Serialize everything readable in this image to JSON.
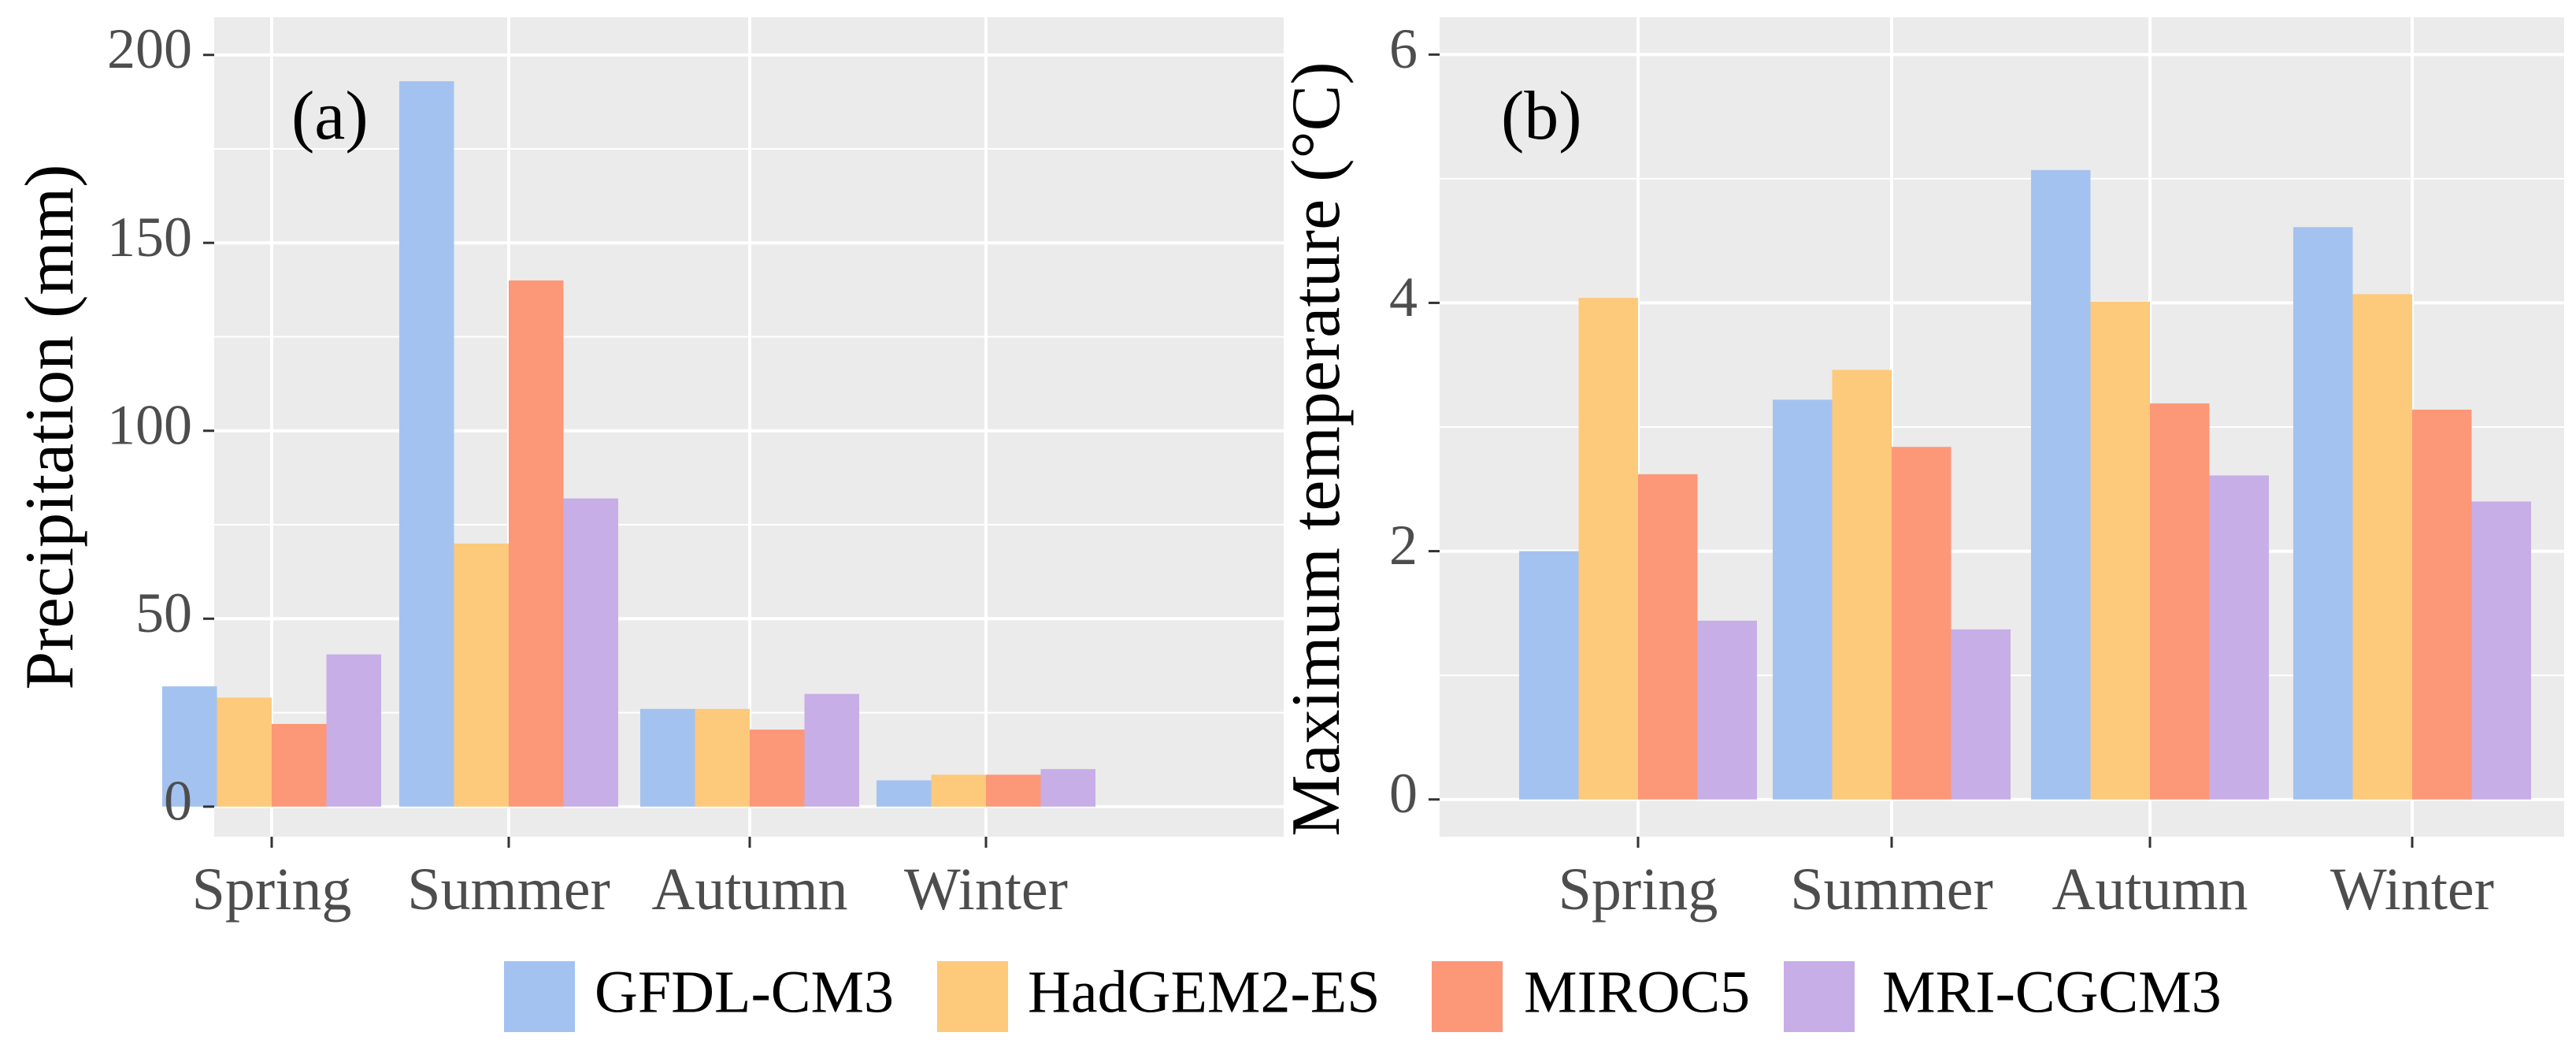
{
  "chart_data": [
    {
      "type": "bar",
      "panel_label": "(a)",
      "title": "",
      "xlabel": "",
      "ylabel": "Precipitation (mm)",
      "ylim": [
        -8,
        210
      ],
      "yticks": [
        0,
        50,
        100,
        150,
        200
      ],
      "categories": [
        "Spring",
        "Summer",
        "Autumn",
        "Winter"
      ],
      "series": [
        {
          "name": "GFDL-CM3",
          "values": [
            32,
            193,
            26,
            7
          ]
        },
        {
          "name": "HadGEM2-ES",
          "values": [
            29,
            70,
            26,
            8.5
          ]
        },
        {
          "name": "MIROC5",
          "values": [
            22,
            140,
            20.5,
            8.5
          ]
        },
        {
          "name": "MRI-CGCM3",
          "values": [
            40.5,
            82,
            30,
            10
          ]
        }
      ]
    },
    {
      "type": "bar",
      "panel_label": "(b)",
      "title": "",
      "xlabel": "",
      "ylabel": "Maximum temperature (°C)",
      "ylim": [
        -0.3,
        6.3
      ],
      "yticks": [
        0,
        2,
        4,
        6
      ],
      "categories": [
        "Spring",
        "Summer",
        "Autumn",
        "Winter"
      ],
      "series": [
        {
          "name": "GFDL-CM3",
          "values": [
            2.0,
            3.22,
            5.07,
            4.61
          ]
        },
        {
          "name": "HadGEM2-ES",
          "values": [
            4.04,
            3.46,
            4.01,
            4.07
          ]
        },
        {
          "name": "MIROC5",
          "values": [
            2.62,
            2.84,
            3.19,
            3.14
          ]
        },
        {
          "name": "MRI-CGCM3",
          "values": [
            1.44,
            1.37,
            2.61,
            2.4
          ]
        }
      ]
    }
  ],
  "legend": {
    "position": "bottom",
    "items": [
      {
        "label": "GFDL-CM3",
        "color": "#A4C2F0"
      },
      {
        "label": "HadGEM2-ES",
        "color": "#FDC97A"
      },
      {
        "label": "MIROC5",
        "color": "#FC9778"
      },
      {
        "label": "MRI-CGCM3",
        "color": "#C7AEE6"
      }
    ]
  },
  "style": {
    "panel_background": "#EBEBEB",
    "gridline_color": "#FFFFFF",
    "tick_text_color": "#4D4D4D"
  }
}
